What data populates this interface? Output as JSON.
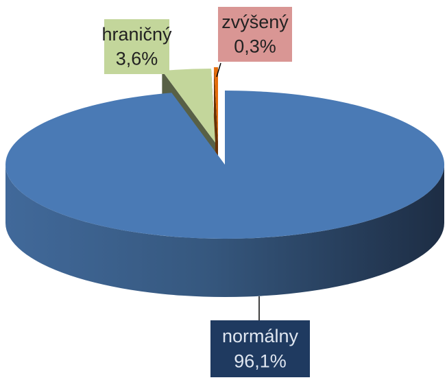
{
  "chart_data": {
    "type": "pie",
    "categories": [
      "normálny",
      "hraničný",
      "zvýšený"
    ],
    "values": [
      96.1,
      3.6,
      0.3
    ],
    "value_labels": [
      "96,1%",
      "3,6%",
      "0,3%"
    ],
    "colors": [
      "#4a7ab5",
      "#c3d69b",
      "#e46c0a"
    ],
    "label_colors": [
      "#1f3a60",
      "#c3d69b",
      "#d99694"
    ]
  }
}
